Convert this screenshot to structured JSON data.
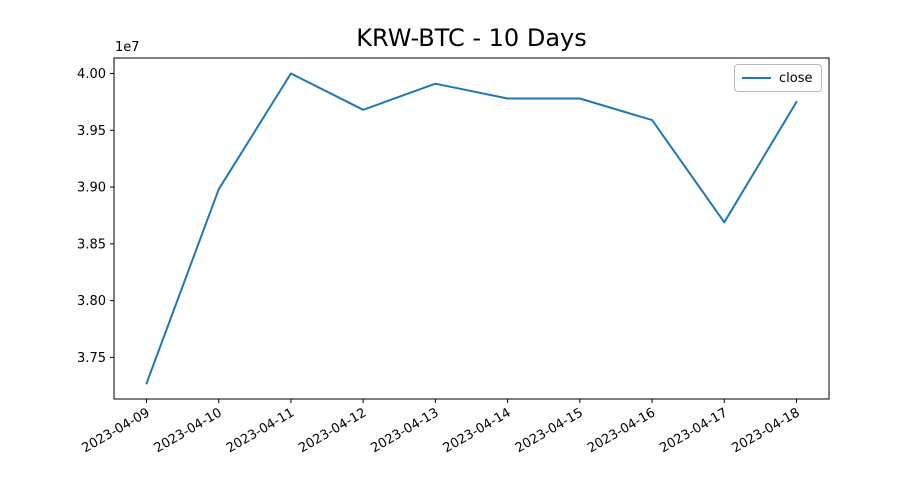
{
  "figure": {
    "background_color": "#ffffff",
    "axis_color": "#000000"
  },
  "chart_data": {
    "type": "line",
    "title": "KRW-BTC - 10 Days",
    "xlabel": "",
    "ylabel": "",
    "grid": false,
    "legend_position": "upper right",
    "y_offset_text": "1e7",
    "x": [
      "2023-04-09",
      "2023-04-10",
      "2023-04-11",
      "2023-04-12",
      "2023-04-13",
      "2023-04-14",
      "2023-04-15",
      "2023-04-16",
      "2023-04-17",
      "2023-04-18"
    ],
    "series": [
      {
        "name": "close",
        "color": "#1f77b4",
        "values": [
          37270000,
          38980000,
          40000000,
          39680000,
          39910000,
          39780000,
          39780000,
          39590000,
          38690000,
          39750000
        ]
      }
    ],
    "y_ticks": {
      "values": [
        37500000,
        38000000,
        38500000,
        39000000,
        39500000,
        40000000
      ],
      "labels": [
        "3.75",
        "3.80",
        "3.85",
        "3.90",
        "3.95",
        "4.00"
      ]
    },
    "x_tick_rotation_deg": 30,
    "y_margin_fraction": 0.05,
    "x_margin_fraction": 0.05
  }
}
